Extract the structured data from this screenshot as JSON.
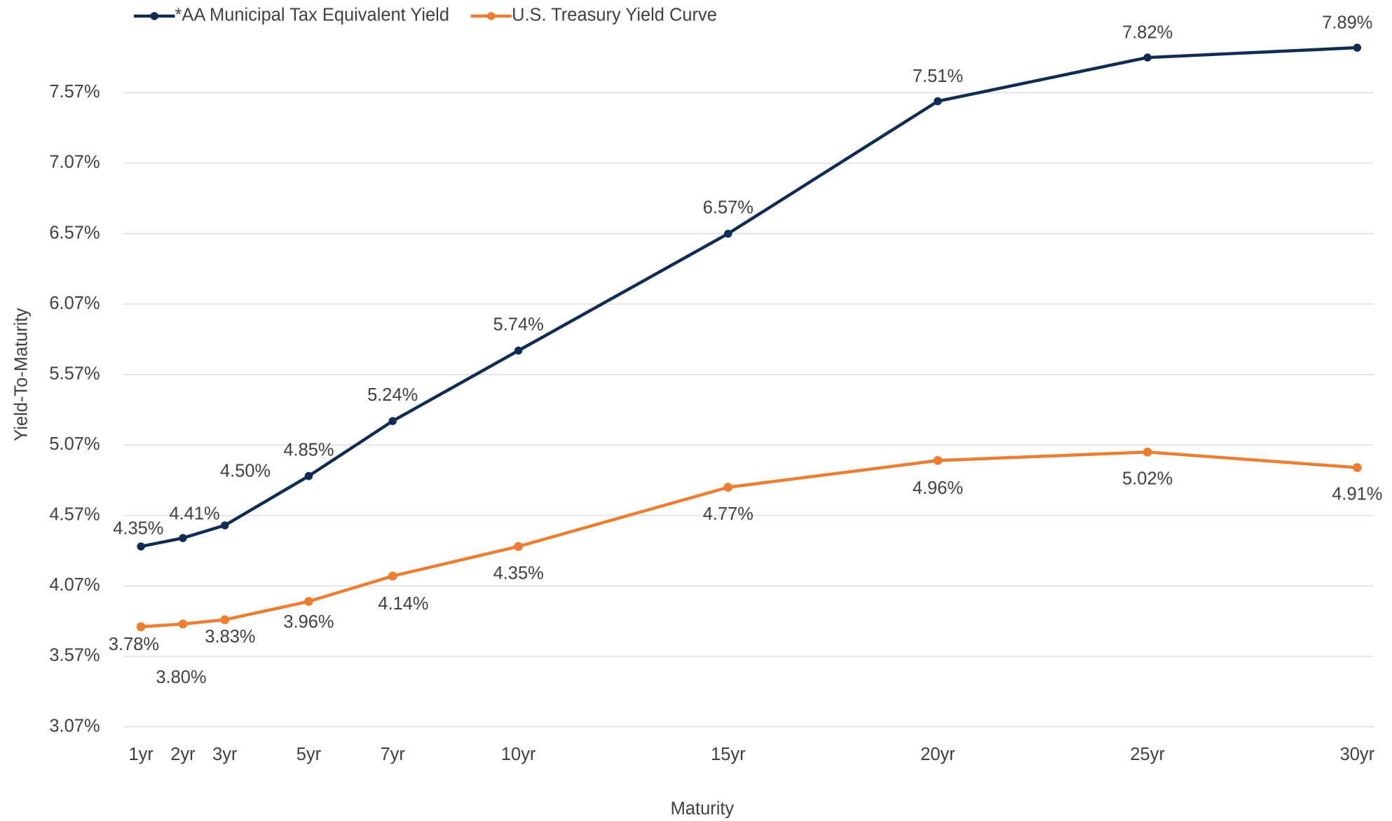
{
  "chart_data": {
    "type": "line",
    "x_label": "Maturity",
    "y_label": "Yield-To-Maturity",
    "x": [
      1,
      2,
      3,
      5,
      7,
      10,
      15,
      20,
      25,
      30
    ],
    "xlim": [
      1,
      30
    ],
    "xticks": [
      {
        "value": 1,
        "label": "1yr"
      },
      {
        "value": 2,
        "label": "2yr"
      },
      {
        "value": 3,
        "label": "3yr"
      },
      {
        "value": 5,
        "label": "5yr"
      },
      {
        "value": 7,
        "label": "7yr"
      },
      {
        "value": 10,
        "label": "10yr"
      },
      {
        "value": 15,
        "label": "15yr"
      },
      {
        "value": 20,
        "label": "20yr"
      },
      {
        "value": 25,
        "label": "25yr"
      },
      {
        "value": 30,
        "label": "30yr"
      }
    ],
    "ylim": [
      3.07,
      7.97
    ],
    "yticks": [
      {
        "value": 3.07,
        "label": "3.07%"
      },
      {
        "value": 3.57,
        "label": "3.57%"
      },
      {
        "value": 4.07,
        "label": "4.07%"
      },
      {
        "value": 4.57,
        "label": "4.57%"
      },
      {
        "value": 5.07,
        "label": "5.07%"
      },
      {
        "value": 5.57,
        "label": "5.57%"
      },
      {
        "value": 6.07,
        "label": "6.07%"
      },
      {
        "value": 6.57,
        "label": "6.57%"
      },
      {
        "value": 7.07,
        "label": "7.07%"
      },
      {
        "value": 7.57,
        "label": "7.57%"
      }
    ],
    "grid": true,
    "legend": "top-left",
    "series": [
      {
        "name": "*AA Municipal Tax Equivalent Yield",
        "color": "#0e2c54",
        "values": [
          4.35,
          4.41,
          4.5,
          4.85,
          5.24,
          5.74,
          6.57,
          7.51,
          7.82,
          7.89
        ],
        "value_labels": [
          "4.35%",
          "4.41%",
          "4.50%",
          "4.85%",
          "5.24%",
          "5.74%",
          "6.57%",
          "7.51%",
          "7.82%",
          "7.89%"
        ]
      },
      {
        "name": "U.S. Treasury Yield Curve",
        "color": "#ed7d31",
        "values": [
          3.78,
          3.8,
          3.83,
          3.96,
          4.14,
          4.35,
          4.77,
          4.96,
          5.02,
          4.91
        ],
        "value_labels": [
          "3.78%",
          "3.80%",
          "3.83%",
          "3.96%",
          "4.14%",
          "4.35%",
          "4.77%",
          "4.96%",
          "5.02%",
          "4.91%"
        ]
      }
    ]
  }
}
